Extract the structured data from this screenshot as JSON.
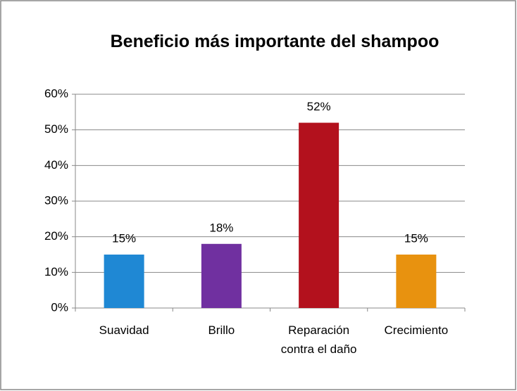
{
  "chart_data": {
    "type": "bar",
    "title": "Beneficio más importante del shampoo",
    "categories": [
      "Suavidad",
      "Brillo",
      "Reparación contra el daño",
      "Crecimiento"
    ],
    "values": [
      15,
      18,
      52,
      15
    ],
    "value_labels": [
      "15%",
      "18%",
      "52%",
      "15%"
    ],
    "colors": [
      "#1f88d4",
      "#7030a0",
      "#b3111d",
      "#e8920f"
    ],
    "ylim": [
      0,
      60
    ],
    "yticks": [
      {
        "value": 0,
        "label": "0%"
      },
      {
        "value": 10,
        "label": "10%"
      },
      {
        "value": 20,
        "label": "20%"
      },
      {
        "value": 30,
        "label": "30%"
      },
      {
        "value": 40,
        "label": "40%"
      },
      {
        "value": 50,
        "label": "50%"
      },
      {
        "value": 60,
        "label": "60%"
      }
    ],
    "grid": true
  }
}
